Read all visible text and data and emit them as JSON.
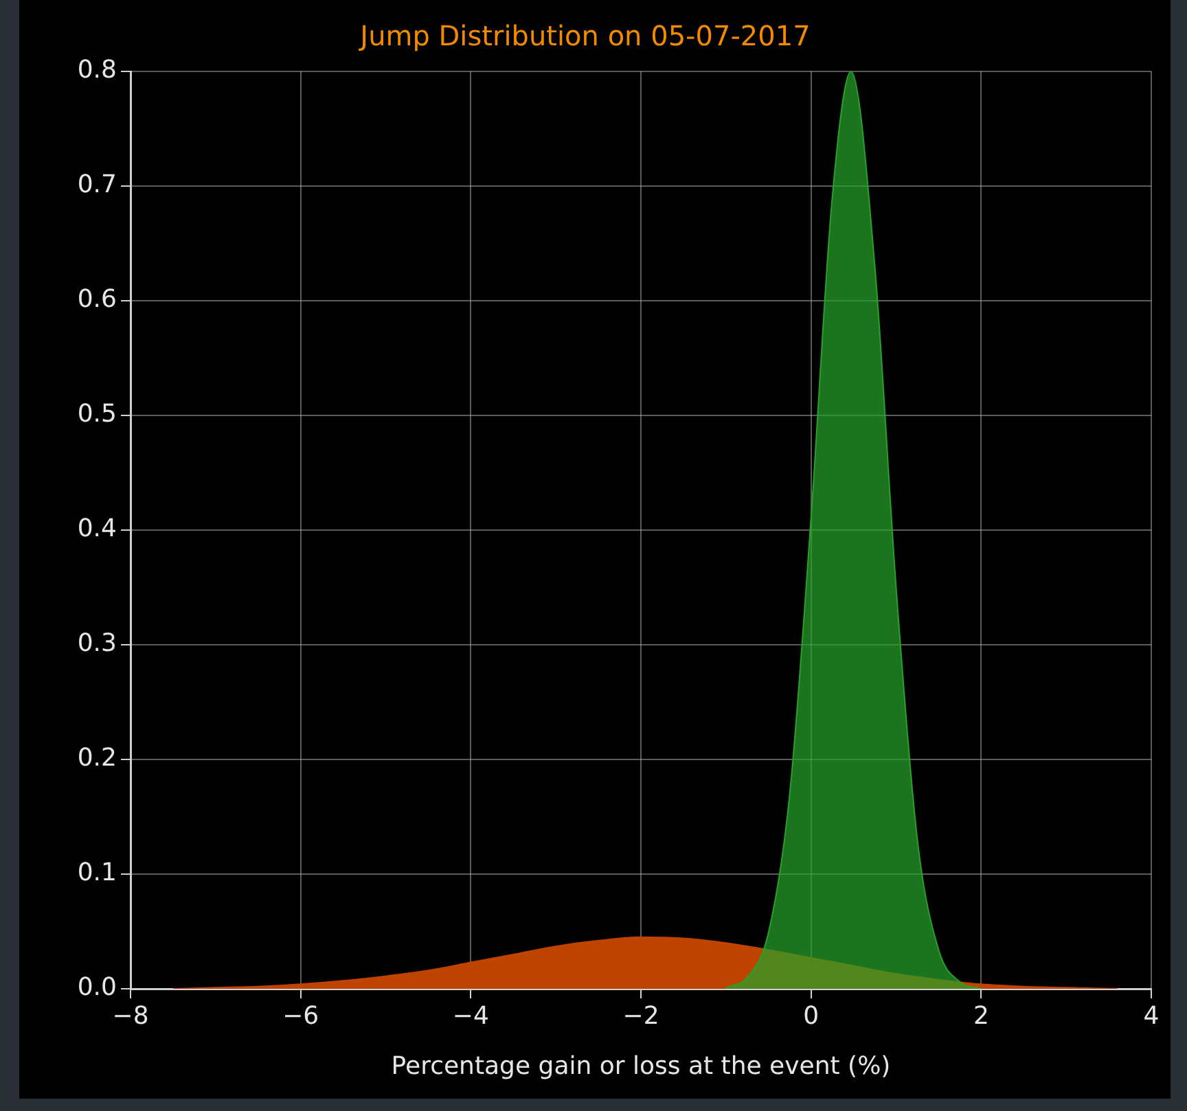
{
  "chart_data": {
    "type": "area",
    "title": "Jump Distribution on 05-07-2017",
    "xlabel": "Percentage gain or loss at the event (%)",
    "series": [
      {
        "color": "#c04400",
        "x": [
          -7.5,
          -7,
          -6.5,
          -6,
          -5.5,
          -5,
          -4.5,
          -4,
          -3.5,
          -3,
          -2.5,
          -2,
          -1.5,
          -1,
          -0.5,
          0,
          0.5,
          1,
          1.5,
          2,
          2.5,
          3,
          3.6
        ],
        "values": [
          0,
          0.001,
          0.002,
          0.004,
          0.007,
          0.011,
          0.016,
          0.023,
          0.03,
          0.037,
          0.042,
          0.045,
          0.044,
          0.04,
          0.034,
          0.027,
          0.02,
          0.013,
          0.008,
          0.004,
          0.002,
          0.001,
          0
        ]
      },
      {
        "color": "#27a12a",
        "x": [
          -1,
          -0.75,
          -0.5,
          -0.25,
          0,
          0.25,
          0.47,
          0.75,
          1,
          1.25,
          1.5,
          1.75,
          2
        ],
        "values": [
          0.001,
          0.01,
          0.049,
          0.17,
          0.41,
          0.69,
          0.8,
          0.63,
          0.35,
          0.13,
          0.034,
          0.006,
          0
        ]
      }
    ],
    "xlim": [
      -8,
      4
    ],
    "xticks": [
      {
        "value": -8,
        "label": "−8"
      },
      {
        "value": -6,
        "label": "−6"
      },
      {
        "value": -4,
        "label": "−4"
      },
      {
        "value": -2,
        "label": "−2"
      },
      0,
      2,
      4
    ],
    "ylim": [
      0,
      0.8
    ],
    "yticks": [
      {
        "value": 0,
        "label": "0.0"
      },
      0.1,
      0.2,
      0.3,
      0.4,
      0.5,
      0.6,
      0.7,
      0.8
    ],
    "grid": true,
    "legend": false
  }
}
